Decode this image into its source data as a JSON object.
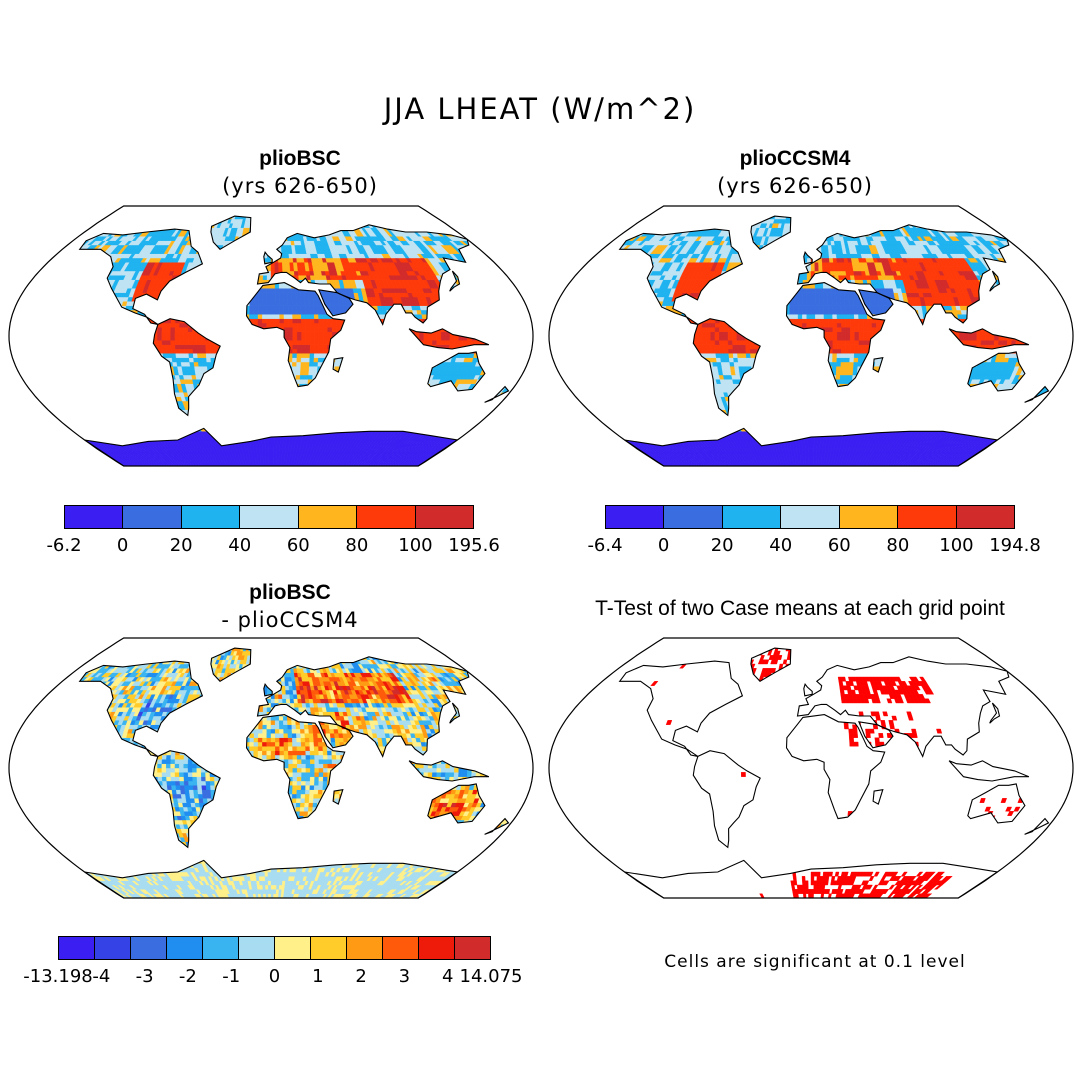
{
  "title": "JJA LHEAT (W/m^2)",
  "panels": [
    {
      "id": "p1",
      "title": "plioBSC",
      "subtitle": "(yrs 626-650)"
    },
    {
      "id": "p2",
      "title": "plioCCSM4",
      "subtitle": "(yrs 626-650)"
    },
    {
      "id": "p3",
      "title": "plioBSC",
      "subtitle": "- plioCCSM4"
    },
    {
      "id": "p4",
      "title": "T-Test of two Case means at each grid point",
      "subtitle": ""
    }
  ],
  "colorbars": [
    {
      "id": "cb1",
      "labels": [
        "-6.2",
        "0",
        "20",
        "40",
        "60",
        "80",
        "100",
        "195.6"
      ],
      "colors": [
        "#3b1ff2",
        "#3a6ee0",
        "#1fb3f0",
        "#bfe3f2",
        "#ffb61e",
        "#ff3a0a",
        "#d22b2b"
      ]
    },
    {
      "id": "cb2",
      "labels": [
        "-6.4",
        "0",
        "20",
        "40",
        "60",
        "80",
        "100",
        "194.8"
      ],
      "colors": [
        "#3b1ff2",
        "#3a6ee0",
        "#1fb3f0",
        "#bfe3f2",
        "#ffb61e",
        "#ff3a0a",
        "#d22b2b"
      ]
    },
    {
      "id": "cb3",
      "labels": [
        "-13.198",
        "-4",
        "-3",
        "-2",
        "-1",
        "0",
        "1",
        "2",
        "3",
        "4",
        "14.075"
      ],
      "colors": [
        "#3b1ff2",
        "#3442e6",
        "#3a6ee0",
        "#1f8ef0",
        "#3ab4f0",
        "#a8dcf0",
        "#fff08a",
        "#ffcc2a",
        "#ff9a14",
        "#ff5a0a",
        "#ee1a0a",
        "#d22b2b"
      ]
    }
  ],
  "significance_note": "Cells are significant at 0.1 level",
  "significance_color": "#ff0000",
  "palette": {
    "ocean": "#ffffff",
    "coast": "#000000"
  }
}
